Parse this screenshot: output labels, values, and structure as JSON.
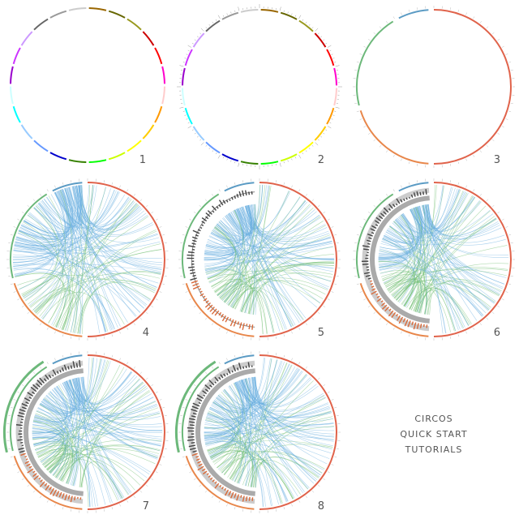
{
  "panels": [
    {
      "label": "1"
    },
    {
      "label": "2"
    },
    {
      "label": "3"
    },
    {
      "label": "4"
    },
    {
      "label": "5"
    },
    {
      "label": "6"
    },
    {
      "label": "7"
    },
    {
      "label": "8"
    }
  ],
  "caption": {
    "lines": [
      "CIRCOS",
      "QUICK START",
      "TUTORIALS"
    ]
  }
}
